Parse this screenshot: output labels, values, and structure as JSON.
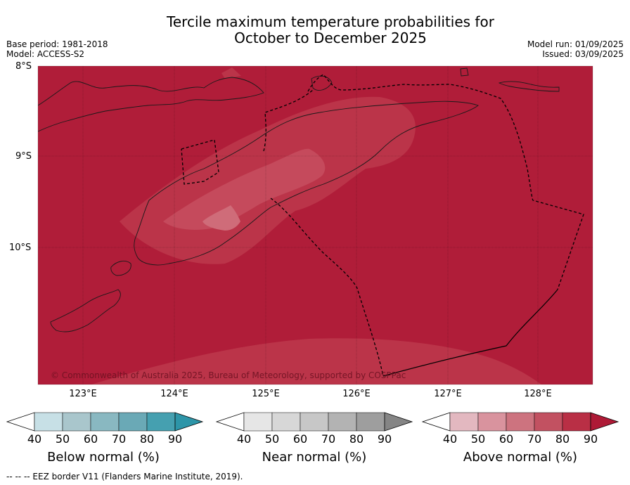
{
  "title_line1": "Tercile maximum temperature probabilities for",
  "title_line2": "October to December 2025",
  "base_period": "Base period: 1981-2018",
  "model": "Model: ACCESS-S2",
  "model_run": "Model run: 01/09/2025",
  "issued": "Issued: 03/09/2025",
  "lat_labels": [
    "8°S",
    "9°S",
    "10°S"
  ],
  "lon_labels": [
    "123°E",
    "124°E",
    "125°E",
    "126°E",
    "127°E",
    "128°E"
  ],
  "copyright": "© Commonwealth of Australia 2025, Bureau of Meteorology, supported by COSPPac",
  "colorbars": [
    {
      "title": "Below normal (%)",
      "ticks": [
        "40",
        "50",
        "60",
        "70",
        "80",
        "90"
      ],
      "colors": [
        "#c7e0e6",
        "#a9c6cc",
        "#89b8c1",
        "#6aa9b6",
        "#45a0b0",
        "#2d95a8"
      ]
    },
    {
      "title": "Near normal (%)",
      "ticks": [
        "40",
        "50",
        "60",
        "70",
        "80",
        "90"
      ],
      "colors": [
        "#e6e6e6",
        "#d7d7d7",
        "#c7c7c7",
        "#b3b3b3",
        "#9e9e9e",
        "#858585"
      ]
    },
    {
      "title": "Above normal (%)",
      "ticks": [
        "40",
        "50",
        "60",
        "70",
        "80",
        "90"
      ],
      "colors": [
        "#e3b8c0",
        "#d9939e",
        "#cd737f",
        "#c25161",
        "#b92f45",
        "#ae1a36"
      ]
    }
  ],
  "colors": {
    "map_fill": "#b01d39",
    "contour_70_80": "#bb3449",
    "contour_60_70": "#c54a5c",
    "contour_50_60": "#cf6c79"
  },
  "footnote": "-- -- -- EEZ border V11 (Flanders Marine Institute, 2019)."
}
